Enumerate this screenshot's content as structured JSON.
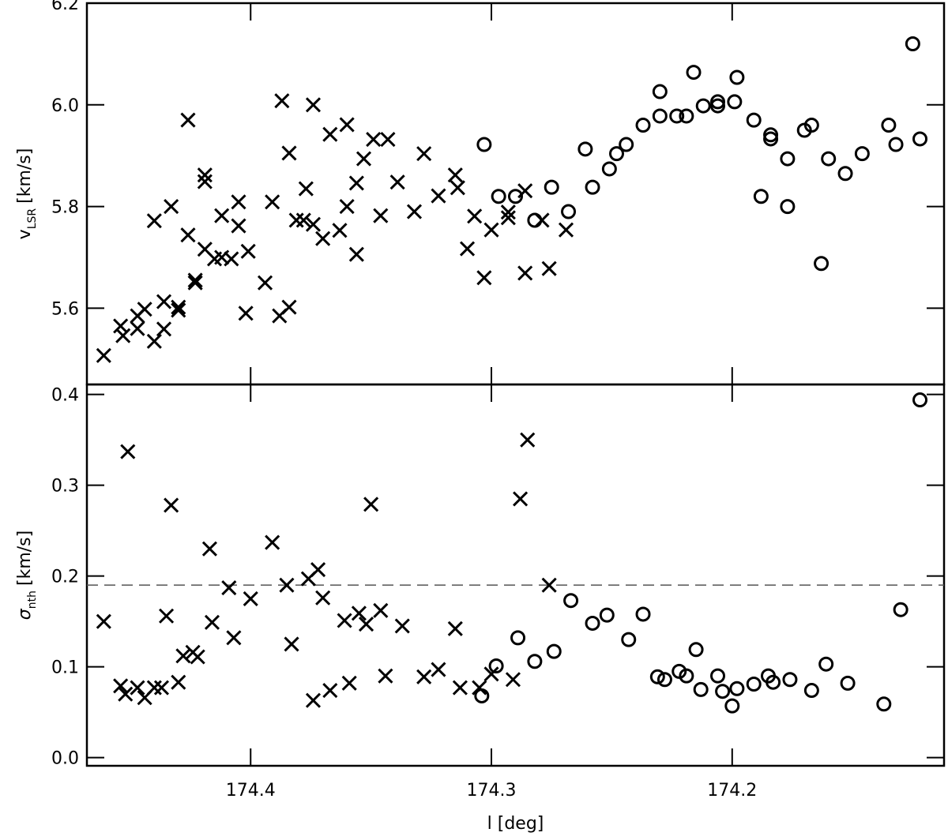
{
  "chart_data": [
    {
      "type": "scatter",
      "ylabel": {
        "symbol": "v",
        "subscript": "LSR",
        "unit": "[km/s]"
      },
      "xlim": [
        174.468,
        174.112
      ],
      "ylim": [
        5.45,
        6.2
      ],
      "yticks": [
        5.6,
        5.8,
        {
          "value": 6,
          "label": "6.0"
        },
        6.2
      ],
      "series": [
        {
          "marker": "x",
          "color": "#000000",
          "x": [
            174.461,
            174.454,
            174.453,
            174.447,
            174.447,
            174.444,
            174.44,
            174.44,
            174.436,
            174.436,
            174.433,
            174.43,
            174.43,
            174.426,
            174.426,
            174.423,
            174.423,
            174.419,
            174.419,
            174.419,
            174.415,
            174.412,
            174.412,
            174.408,
            174.405,
            174.405,
            174.402,
            174.401,
            174.394,
            174.391,
            174.388,
            174.387,
            174.384,
            174.384,
            174.381,
            174.378,
            174.377,
            174.374,
            174.374,
            174.37,
            174.367,
            174.363,
            174.36,
            174.36,
            174.356,
            174.356,
            174.353,
            174.349,
            174.346,
            174.343,
            174.339,
            174.332,
            174.328,
            174.322,
            174.315,
            174.314,
            174.31,
            174.307,
            174.303,
            174.3,
            174.293,
            174.293,
            174.286,
            174.286,
            174.279,
            174.276,
            174.269
          ],
          "values": [
            5.507,
            5.565,
            5.546,
            5.56,
            5.585,
            5.598,
            5.535,
            5.772,
            5.613,
            5.559,
            5.8,
            5.602,
            5.596,
            5.97,
            5.744,
            5.655,
            5.65,
            5.862,
            5.849,
            5.716,
            5.697,
            5.782,
            5.7,
            5.697,
            5.809,
            5.762,
            5.59,
            5.712,
            5.65,
            5.809,
            5.585,
            6.008,
            5.602,
            5.905,
            5.773,
            5.773,
            5.835,
            6.0,
            5.765,
            5.737,
            5.942,
            5.753,
            5.961,
            5.8,
            5.706,
            5.846,
            5.894,
            5.932,
            5.782,
            5.932,
            5.848,
            5.79,
            5.904,
            5.821,
            5.862,
            5.837,
            5.717,
            5.781,
            5.66,
            5.754,
            5.778,
            5.789,
            5.669,
            5.831,
            5.773,
            5.678,
            5.754
          ]
        },
        {
          "marker": "o",
          "color": "#000000",
          "x": [
            174.303,
            174.297,
            174.29,
            174.282,
            174.275,
            174.268,
            174.261,
            174.258,
            174.251,
            174.248,
            174.244,
            174.237,
            174.23,
            174.23,
            174.223,
            174.219,
            174.216,
            174.212,
            174.206,
            174.206,
            174.199,
            174.198,
            174.191,
            174.188,
            174.184,
            174.184,
            174.177,
            174.177,
            174.17,
            174.167,
            174.163,
            174.16,
            174.153,
            174.146,
            174.135,
            174.132,
            174.125,
            174.122
          ],
          "values": [
            5.922,
            5.82,
            5.82,
            5.773,
            5.838,
            5.79,
            5.913,
            5.838,
            5.874,
            5.904,
            5.922,
            5.96,
            6.026,
            5.978,
            5.978,
            5.978,
            6.064,
            5.998,
            6.006,
            5.998,
            6.006,
            6.054,
            5.97,
            5.82,
            5.941,
            5.933,
            5.894,
            5.8,
            5.95,
            5.96,
            5.688,
            5.894,
            5.865,
            5.904,
            5.96,
            5.922,
            6.12,
            5.933
          ]
        }
      ]
    },
    {
      "type": "scatter",
      "ylabel": {
        "symbol": "σ",
        "subscript": "nth",
        "unit": "[km/s]"
      },
      "xlabel": "l [deg]",
      "xlim": [
        174.468,
        174.112
      ],
      "ylim": [
        -0.009,
        0.411
      ],
      "xticks": [
        174.4,
        174.3,
        174.2
      ],
      "yticks": [
        {
          "value": 0,
          "label": "0.0"
        },
        0.1,
        0.2,
        0.3,
        0.4
      ],
      "hline": 0.19,
      "hline_color": "#555555",
      "series": [
        {
          "marker": "x",
          "color": "#000000",
          "x": [
            174.461,
            174.454,
            174.452,
            174.447,
            174.444,
            174.44,
            174.451,
            174.437,
            174.435,
            174.433,
            174.43,
            174.428,
            174.424,
            174.422,
            174.417,
            174.416,
            174.409,
            174.407,
            174.4,
            174.391,
            174.385,
            174.383,
            174.376,
            174.374,
            174.372,
            174.37,
            174.367,
            174.361,
            174.359,
            174.355,
            174.352,
            174.35,
            174.346,
            174.344,
            174.337,
            174.328,
            174.322,
            174.315,
            174.313,
            174.305,
            174.3,
            174.291,
            174.288,
            174.285,
            174.276
          ],
          "values": [
            0.15,
            0.079,
            0.07,
            0.077,
            0.066,
            0.077,
            0.337,
            0.077,
            0.156,
            0.278,
            0.083,
            0.112,
            0.116,
            0.111,
            0.23,
            0.149,
            0.187,
            0.132,
            0.175,
            0.237,
            0.19,
            0.125,
            0.197,
            0.063,
            0.207,
            0.176,
            0.074,
            0.151,
            0.082,
            0.159,
            0.147,
            0.279,
            0.162,
            0.09,
            0.145,
            0.089,
            0.097,
            0.142,
            0.077,
            0.077,
            0.092,
            0.086,
            0.285,
            0.35,
            0.19
          ]
        },
        {
          "marker": "o",
          "color": "#000000",
          "x": [
            174.304,
            174.298,
            174.289,
            174.282,
            174.274,
            174.267,
            174.258,
            174.252,
            174.243,
            174.237,
            174.231,
            174.228,
            174.222,
            174.219,
            174.215,
            174.213,
            174.206,
            174.204,
            174.2,
            174.198,
            174.191,
            174.185,
            174.183,
            174.176,
            174.167,
            174.161,
            174.152,
            174.137,
            174.13,
            174.122
          ],
          "values": [
            0.068,
            0.101,
            0.132,
            0.106,
            0.117,
            0.173,
            0.148,
            0.157,
            0.13,
            0.158,
            0.089,
            0.086,
            0.095,
            0.09,
            0.119,
            0.075,
            0.09,
            0.073,
            0.057,
            0.076,
            0.081,
            0.09,
            0.083,
            0.086,
            0.074,
            0.103,
            0.082,
            0.059,
            0.163,
            0.394
          ]
        }
      ]
    }
  ]
}
